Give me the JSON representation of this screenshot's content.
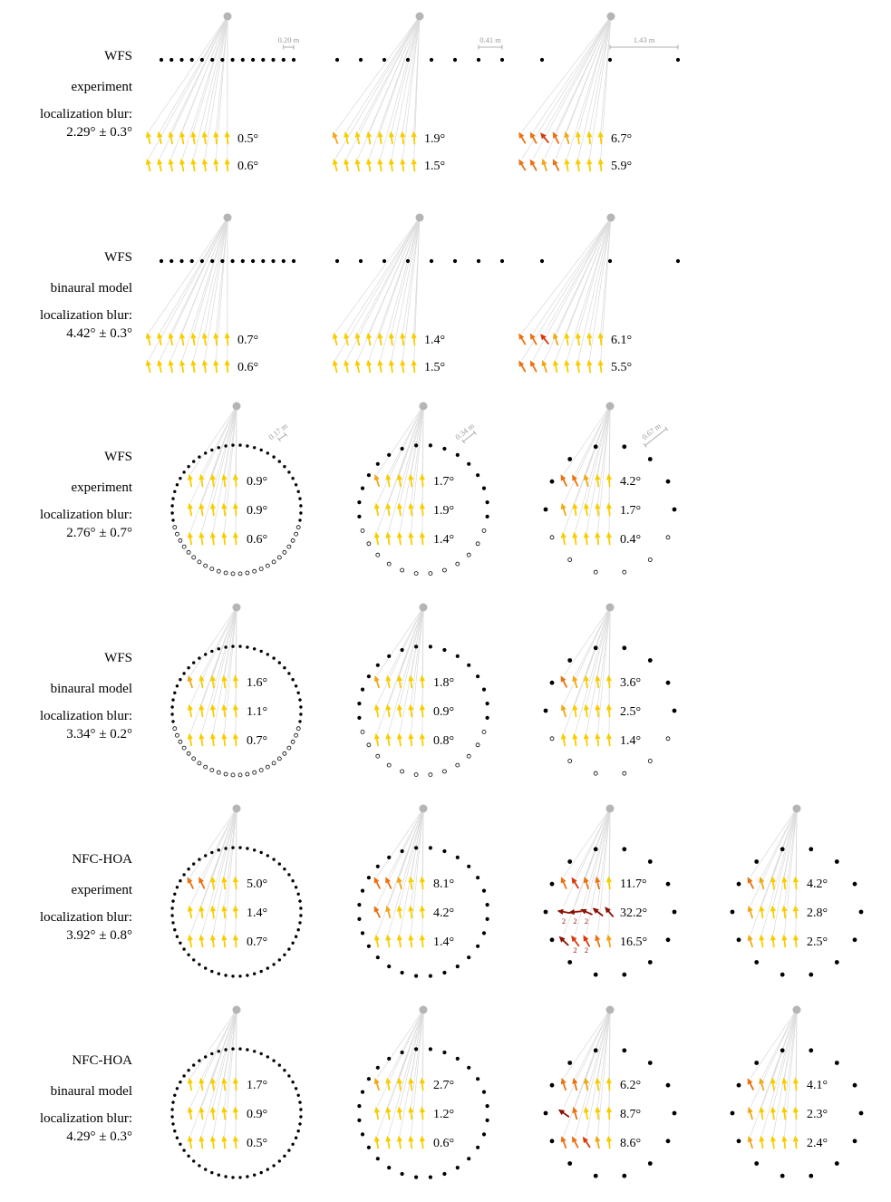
{
  "colors": {
    "arrow": {
      "y": "#f8cd00",
      "g": "#f2a714",
      "o": "#ec7110",
      "r": "#d8390b",
      "d": "#8c1000"
    },
    "line": "#dcdcdc",
    "speaker": "#000000",
    "source": "#b5b5b5",
    "scale_text": "#999999",
    "angle_text": "#000000"
  },
  "figure": {
    "rows": [
      {
        "name": "wfs-linear-experiment",
        "type": "linear",
        "labels": [
          "WFS",
          "experiment",
          "localization blur:",
          "2.29° ± 0.3°"
        ],
        "panels": [
          {
            "scale": "0.20 m",
            "speakers": 14,
            "arrow_rows": [
              {
                "label": "0.5°",
                "colors": "yyyyyyyy"
              },
              {
                "label": "0.6°",
                "colors": "yyyyyyyy"
              }
            ]
          },
          {
            "scale": "0.41 m",
            "speakers": 8,
            "arrow_rows": [
              {
                "label": "1.9°",
                "colors": "gyyyyyyy"
              },
              {
                "label": "1.5°",
                "colors": "yyyyyyyy"
              }
            ]
          },
          {
            "scale": "1.43 m",
            "speakers": 3,
            "arrow_rows": [
              {
                "label": "6.7°",
                "colors": "oorogyyy"
              },
              {
                "label": "5.9°",
                "colors": "oogoyyyy"
              }
            ]
          }
        ]
      },
      {
        "name": "wfs-linear-binaural",
        "type": "linear",
        "labels": [
          "WFS",
          "binaural model",
          "localization blur:",
          "4.42° ± 0.3°"
        ],
        "panels": [
          {
            "speakers": 14,
            "arrow_rows": [
              {
                "label": "0.7°",
                "colors": "yyyyyyyy"
              },
              {
                "label": "0.6°",
                "colors": "yyyyyyyy"
              }
            ]
          },
          {
            "speakers": 8,
            "arrow_rows": [
              {
                "label": "1.4°",
                "colors": "yyyyyyyy"
              },
              {
                "label": "1.5°",
                "colors": "yyyyyyyy"
              }
            ]
          },
          {
            "speakers": 3,
            "arrow_rows": [
              {
                "label": "6.1°",
                "colors": "oorgyyyy"
              },
              {
                "label": "5.5°",
                "colors": "oogyyyyy"
              }
            ]
          }
        ]
      },
      {
        "name": "wfs-circular-experiment",
        "type": "circle",
        "open_bottom": true,
        "labels": [
          "WFS",
          "experiment",
          "localization blur:",
          "2.76° ± 0.7°"
        ],
        "panels": [
          {
            "scale": "0.17 m",
            "speakers": 56,
            "arrow_rows": [
              {
                "label": "0.9°",
                "colors": "yyyyy"
              },
              {
                "label": "0.9°",
                "colors": "yyyyy"
              },
              {
                "label": "0.6°",
                "colors": "yyyyy"
              }
            ]
          },
          {
            "scale": "0.34 m",
            "speakers": 28,
            "arrow_rows": [
              {
                "label": "1.7°",
                "colors": "gyyyy"
              },
              {
                "label": "1.9°",
                "colors": "yyyyy"
              },
              {
                "label": "1.4°",
                "colors": "yyyyy"
              }
            ]
          },
          {
            "scale": "0.67 m",
            "speakers": 14,
            "arrow_rows": [
              {
                "label": "4.2°",
                "colors": "oogyy"
              },
              {
                "label": "1.7°",
                "colors": "gyyyy"
              },
              {
                "label": "0.4°",
                "colors": "yyyyy"
              }
            ]
          }
        ]
      },
      {
        "name": "wfs-circular-binaural",
        "type": "circle",
        "open_bottom": true,
        "labels": [
          "WFS",
          "binaural model",
          "localization blur:",
          "3.34° ± 0.2°"
        ],
        "panels": [
          {
            "speakers": 56,
            "arrow_rows": [
              {
                "label": "1.6°",
                "colors": "gyyyy"
              },
              {
                "label": "1.1°",
                "colors": "yyyyy"
              },
              {
                "label": "0.7°",
                "colors": "yyyyy"
              }
            ]
          },
          {
            "speakers": 28,
            "arrow_rows": [
              {
                "label": "1.8°",
                "colors": "gyyyy"
              },
              {
                "label": "0.9°",
                "colors": "yyyyy"
              },
              {
                "label": "0.8°",
                "colors": "yyyyy"
              }
            ]
          },
          {
            "speakers": 14,
            "arrow_rows": [
              {
                "label": "3.6°",
                "colors": "ogyyy"
              },
              {
                "label": "2.5°",
                "colors": "gyyyy"
              },
              {
                "label": "1.4°",
                "colors": "yyyyy"
              }
            ]
          }
        ]
      },
      {
        "name": "nfchoa-experiment",
        "type": "circle",
        "labels": [
          "NFC-HOA",
          "experiment",
          "localization blur:",
          "3.92° ± 0.8°"
        ],
        "panels": [
          {
            "speakers": 56,
            "arrow_rows": [
              {
                "label": "5.0°",
                "colors": "ooyyy"
              },
              {
                "label": "1.4°",
                "colors": "yyyyy"
              },
              {
                "label": "0.7°",
                "colors": "yyyyy"
              }
            ]
          },
          {
            "speakers": 28,
            "arrow_rows": [
              {
                "label": "8.1°",
                "colors": "oogyy"
              },
              {
                "label": "4.2°",
                "colors": "ogyyy"
              },
              {
                "label": "1.4°",
                "colors": "yyyyy"
              }
            ]
          },
          {
            "speakers": 14,
            "arrow_rows": [
              {
                "label": "11.7°",
                "colors": "orooy",
                "tilts": [
                  -24,
                  -32,
                  -18,
                  -12,
                  -6
                ]
              },
              {
                "label": "32.2°",
                "colors": "ddddd",
                "tilts": [
                  -80,
                  -96,
                  -66,
                  -52,
                  -40
                ],
                "subs": [
                  "2",
                  "2",
                  "2",
                  "",
                  ""
                ]
              },
              {
                "label": "16.5°",
                "colors": "drrog",
                "tilts": [
                  -46,
                  -36,
                  -28,
                  -18,
                  -10
                ],
                "subs": [
                  "",
                  "2",
                  "2",
                  "",
                  ""
                ]
              }
            ]
          },
          {
            "speakers": 14,
            "arrow_rows": [
              {
                "label": "4.2°",
                "colors": "ogyyy"
              },
              {
                "label": "2.8°",
                "colors": "gyyyy"
              },
              {
                "label": "2.5°",
                "colors": "gyyyy"
              }
            ]
          }
        ]
      },
      {
        "name": "nfchoa-binaural",
        "type": "circle",
        "labels": [
          "NFC-HOA",
          "binaural model",
          "localization blur:",
          "4.29° ± 0.3°"
        ],
        "panels": [
          {
            "speakers": 56,
            "arrow_rows": [
              {
                "label": "1.7°",
                "colors": "yyyyy"
              },
              {
                "label": "0.9°",
                "colors": "yyyyy"
              },
              {
                "label": "0.5°",
                "colors": "yyyyy"
              }
            ]
          },
          {
            "speakers": 28,
            "arrow_rows": [
              {
                "label": "2.7°",
                "colors": "gyyyy"
              },
              {
                "label": "1.2°",
                "colors": "yyyyy"
              },
              {
                "label": "0.6°",
                "colors": "yyyyy"
              }
            ]
          },
          {
            "speakers": 14,
            "arrow_rows": [
              {
                "label": "6.2°",
                "colors": "oogyy",
                "tilts": [
                  -18,
                  -14,
                  -10,
                  -7,
                  -4
                ]
              },
              {
                "label": "8.7°",
                "colors": "doyyy",
                "tilts": [
                  -55,
                  -16,
                  -10,
                  -6,
                  -3
                ]
              },
              {
                "label": "8.6°",
                "colors": "oorgy",
                "tilts": [
                  -20,
                  -28,
                  -34,
                  -12,
                  -6
                ]
              }
            ]
          },
          {
            "speakers": 14,
            "arrow_rows": [
              {
                "label": "4.1°",
                "colors": "ogyyy"
              },
              {
                "label": "2.3°",
                "colors": "gyyyy"
              },
              {
                "label": "2.4°",
                "colors": "gyyyy"
              }
            ]
          }
        ]
      }
    ]
  }
}
